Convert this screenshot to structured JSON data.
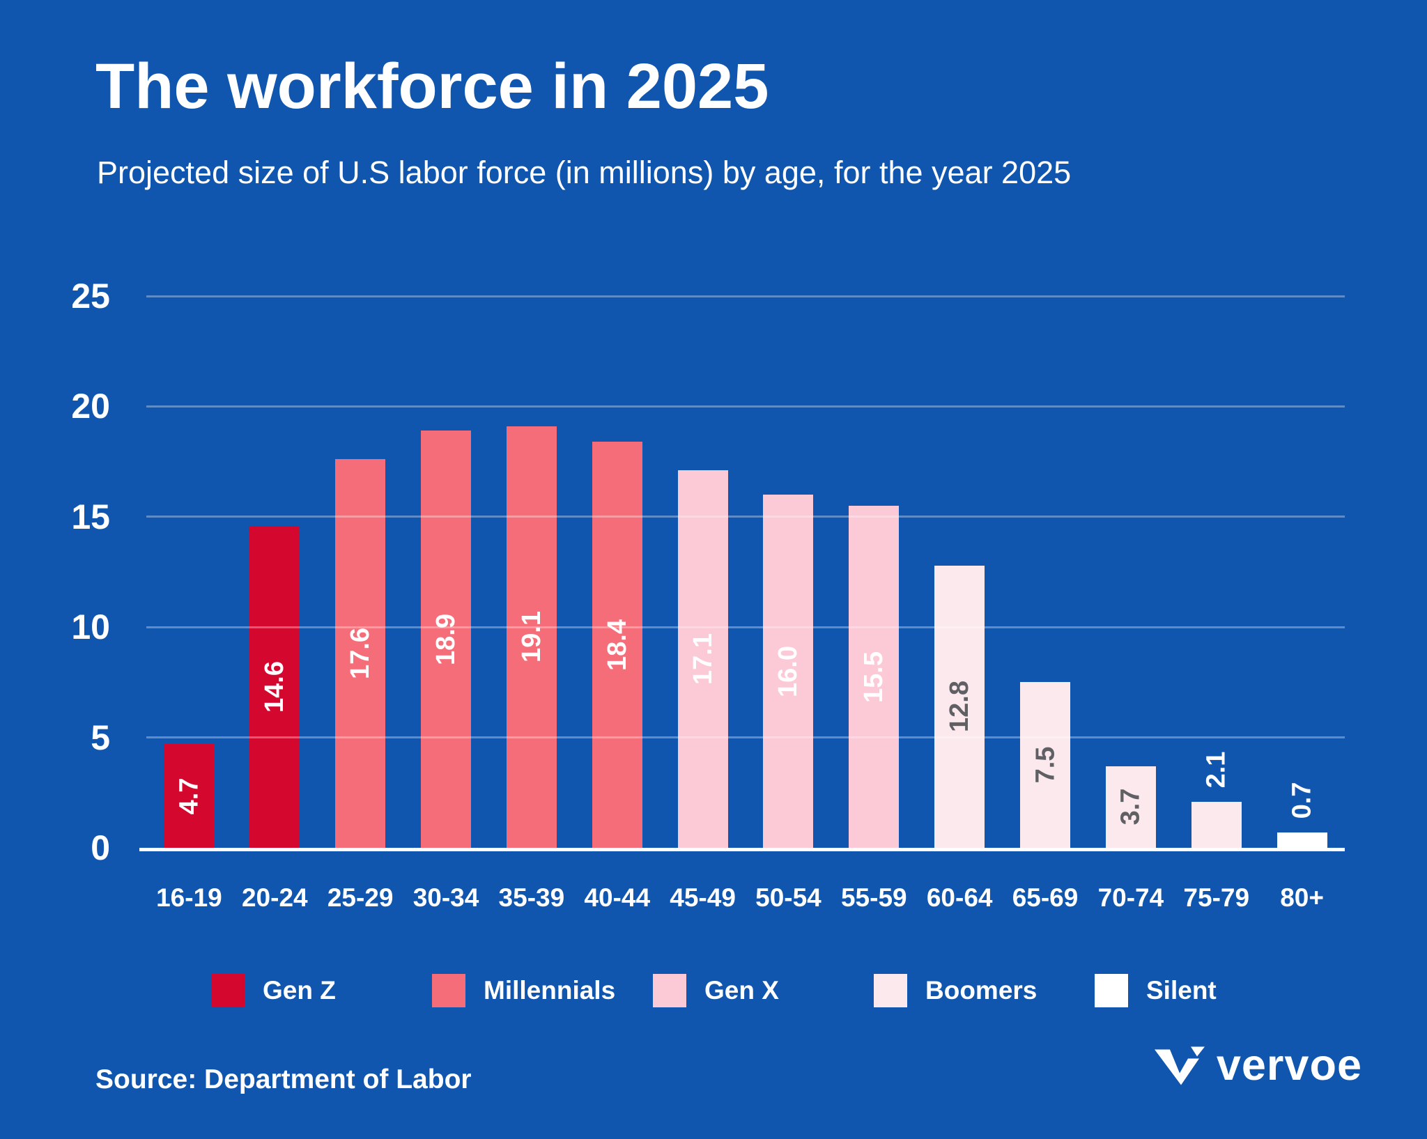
{
  "header": {
    "title": "The workforce in 2025",
    "subtitle": "Projected size of U.S labor force (in millions) by age, for the year 2025"
  },
  "chart_data": {
    "type": "bar",
    "title": "The workforce in 2025",
    "subtitle": "Projected size of U.S labor force (in millions) by age, for the year 2025",
    "xlabel": "",
    "ylabel": "",
    "ylim": [
      0,
      25
    ],
    "yticks": [
      0,
      5,
      10,
      15,
      20,
      25
    ],
    "grid": true,
    "legend_position": "bottom",
    "categories": [
      "16-19",
      "20-24",
      "25-29",
      "30-34",
      "35-39",
      "40-44",
      "45-49",
      "50-54",
      "55-59",
      "60-64",
      "65-69",
      "70-74",
      "75-79",
      "80+"
    ],
    "values": [
      4.7,
      14.6,
      17.6,
      18.9,
      19.1,
      18.4,
      17.1,
      16.0,
      15.5,
      12.8,
      7.5,
      3.7,
      2.1,
      0.7
    ],
    "bar_generations": [
      "genz",
      "genz",
      "millennials",
      "millennials",
      "millennials",
      "millennials",
      "genx",
      "genx",
      "genx",
      "boomers",
      "boomers",
      "boomers",
      "boomers",
      "silent"
    ],
    "legend": [
      {
        "id": "genz",
        "label": "Gen Z",
        "color": "#d4082f"
      },
      {
        "id": "millennials",
        "label": "Millennials",
        "color": "#f56d79"
      },
      {
        "id": "genx",
        "label": "Gen X",
        "color": "#fcc9d6"
      },
      {
        "id": "boomers",
        "label": "Boomers",
        "color": "#fce9ee"
      },
      {
        "id": "silent",
        "label": "Silent",
        "color": "#ffffff"
      }
    ],
    "value_label_color_light": "#ffffff",
    "value_label_color_dark": "#5f6063",
    "dark_label_generations": [
      "boomers",
      "silent"
    ]
  },
  "colors": {
    "background": "#1156ae",
    "gridline": "rgba(255,255,255,0.32)",
    "axis_line": "#ffffff"
  },
  "footer": {
    "source": "Source: Department of Labor",
    "brand": "vervoe"
  }
}
